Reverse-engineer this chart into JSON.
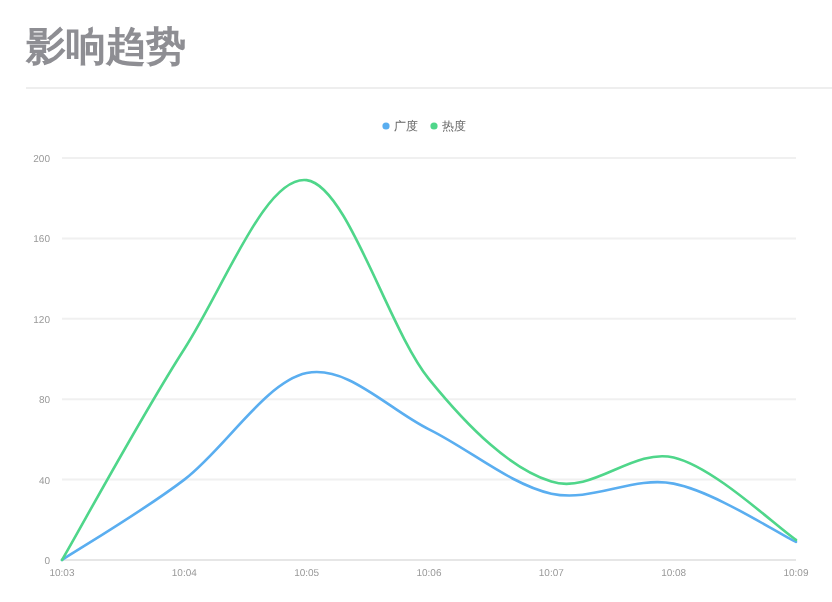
{
  "chart_data": {
    "type": "line",
    "title": "影响趋势",
    "categories": [
      "10:03",
      "10:04",
      "10:05",
      "10:06",
      "10:07",
      "10:08",
      "10:09"
    ],
    "series": [
      {
        "name": "广度",
        "color": "#5aaef0",
        "values": [
          0,
          40,
          93,
          65,
          33,
          38,
          9
        ]
      },
      {
        "name": "热度",
        "color": "#4fd68a",
        "values": [
          0,
          105,
          189,
          90,
          39,
          51,
          10
        ]
      }
    ],
    "ylim": [
      0,
      200
    ],
    "yticks": [
      0,
      40,
      80,
      120,
      160,
      200
    ],
    "grid": "y",
    "legend": "top",
    "marker": "none",
    "line_style": "solid"
  }
}
